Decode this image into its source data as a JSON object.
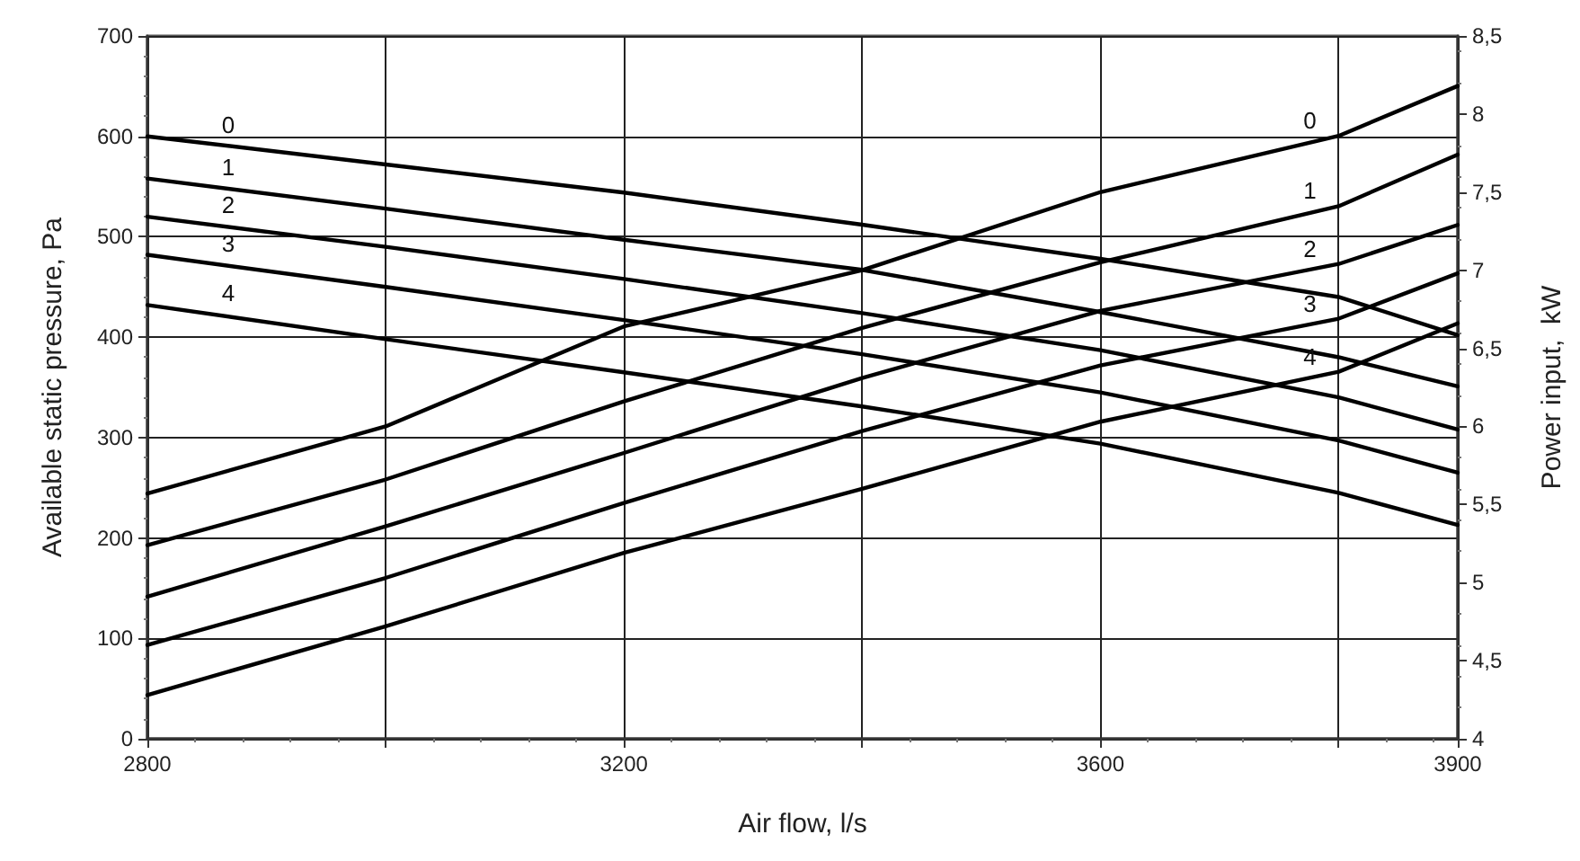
{
  "chart_data": {
    "type": "line",
    "xlabel": "Air flow, l/s",
    "ylabel": "Available static pressure, Pa",
    "y2label": "Power input,  kW",
    "x": [
      2800,
      3000,
      3200,
      3400,
      3600,
      3800,
      3900
    ],
    "series": [
      {
        "name": "0",
        "color": "#000000",
        "values": [
          600,
          572,
          544,
          512,
          478,
          440,
          402
        ]
      },
      {
        "name": "1",
        "color": "#000000",
        "values": [
          558,
          528,
          497,
          467,
          425,
          380,
          351
        ]
      },
      {
        "name": "2",
        "color": "#000000",
        "values": [
          520,
          490,
          458,
          424,
          387,
          340,
          308
        ]
      },
      {
        "name": "3",
        "color": "#000000",
        "values": [
          482,
          450,
          417,
          383,
          345,
          297,
          265
        ]
      },
      {
        "name": "4",
        "color": "#000000",
        "values": [
          432,
          398,
          365,
          331,
          294,
          245,
          213
        ]
      },
      {
        "name": "0",
        "color": "#000000",
        "axis": "y2",
        "values": [
          5.57,
          6.0,
          6.64,
          7.0,
          7.5,
          7.86,
          8.18
        ]
      },
      {
        "name": "1",
        "color": "#000000",
        "axis": "y2",
        "values": [
          5.24,
          5.66,
          6.16,
          6.63,
          7.05,
          7.41,
          7.74
        ]
      },
      {
        "name": "2",
        "color": "#000000",
        "axis": "y2",
        "values": [
          4.91,
          5.36,
          5.83,
          6.31,
          6.74,
          7.04,
          7.29
        ]
      },
      {
        "name": "3",
        "color": "#000000",
        "axis": "y2",
        "values": [
          4.6,
          5.03,
          5.51,
          5.97,
          6.39,
          6.69,
          6.98
        ]
      },
      {
        "name": "4",
        "color": "#000000",
        "axis": "y2",
        "values": [
          4.28,
          4.72,
          5.19,
          5.6,
          6.03,
          6.35,
          6.66
        ]
      }
    ],
    "xlim": [
      2800,
      3900
    ],
    "xticks": [
      2800,
      {
        "value": 3000,
        "label": null
      },
      3200,
      {
        "value": 3400,
        "label": null
      },
      3600,
      {
        "value": 3800,
        "label": null
      },
      3900
    ],
    "ylim": [
      0,
      700
    ],
    "yticks": [
      0,
      100,
      200,
      300,
      400,
      500,
      600,
      700
    ],
    "y2lim": [
      4,
      8.5
    ],
    "y2ticks": [
      4,
      {
        "value": 4.5,
        "label": "4,5"
      },
      5,
      {
        "value": 5.5,
        "label": "5,5"
      },
      6,
      {
        "value": 6.5,
        "label": "6,5"
      },
      7,
      {
        "value": 7.5,
        "label": "7,5"
      },
      8,
      {
        "value": 8.5,
        "label": "8,5"
      }
    ],
    "grid": true,
    "legend": false,
    "marker": "none",
    "line_style": "solid"
  }
}
